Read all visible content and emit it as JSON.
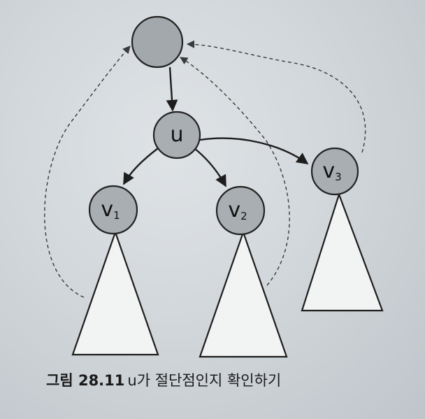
{
  "diagram": {
    "nodes": {
      "root": {
        "label": ""
      },
      "u": {
        "label": "u"
      },
      "v1": {
        "label": "v",
        "sub": "1"
      },
      "v2": {
        "label": "v",
        "sub": "2"
      },
      "v3": {
        "label": "v",
        "sub": "3"
      }
    },
    "edges": [
      {
        "from": "root",
        "to": "u",
        "style": "solid"
      },
      {
        "from": "u",
        "to": "v1",
        "style": "solid"
      },
      {
        "from": "u",
        "to": "v2",
        "style": "solid"
      },
      {
        "from": "u",
        "to": "v3",
        "style": "solid"
      },
      {
        "from": "v1-subtree",
        "to": "root",
        "style": "dashed"
      },
      {
        "from": "v2-subtree",
        "to": "root",
        "style": "dashed"
      },
      {
        "from": "v3",
        "to": "root",
        "style": "dashed"
      }
    ],
    "subtrees": [
      "v1",
      "v2",
      "v3"
    ]
  },
  "caption": {
    "figure": "그림 28.11",
    "text": "u가 절단점인지 확인하기"
  },
  "colors": {
    "node_fill": "#a9aeb2",
    "stroke": "#1d1d1d",
    "page": "#d2d7db"
  }
}
